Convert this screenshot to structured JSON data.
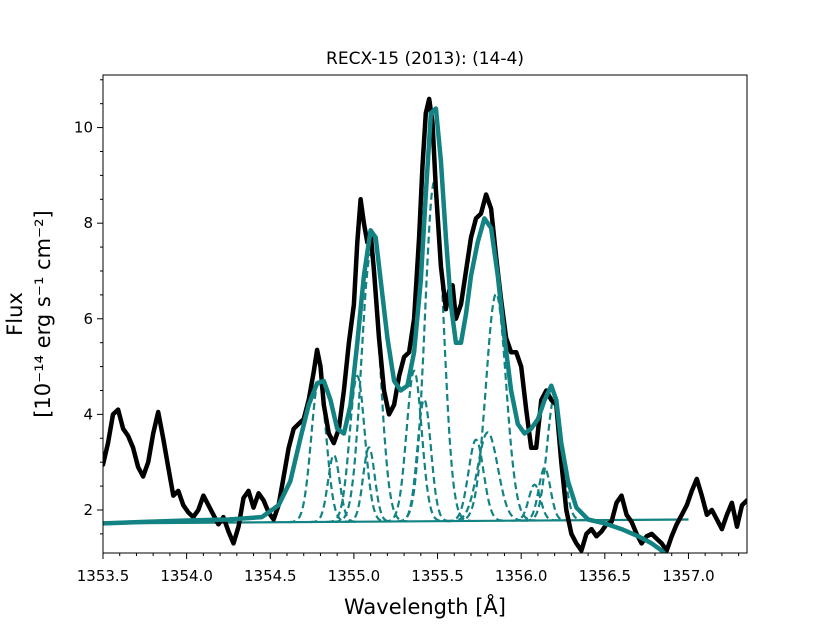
{
  "chart_data": {
    "type": "line",
    "title": "RECX-15 (2013): (14-4)",
    "xlabel": "Wavelength [Å]",
    "ylabel_line1": "Flux",
    "ylabel_line2": "[10⁻¹⁴ erg s⁻¹ cm⁻²]",
    "xlim": [
      1353.5,
      1357.35
    ],
    "ylim": [
      1.1,
      11.1
    ],
    "xticks": [
      1353.5,
      1354.0,
      1354.5,
      1355.0,
      1355.5,
      1356.0,
      1356.5,
      1357.0
    ],
    "xtick_labels": [
      "1353.5",
      "1354.0",
      "1354.5",
      "1355.0",
      "1355.5",
      "1356.0",
      "1356.5",
      "1357.0"
    ],
    "yticks": [
      2,
      4,
      6,
      8,
      10
    ],
    "ytick_labels": [
      "2",
      "4",
      "6",
      "8",
      "10"
    ],
    "grid": false,
    "colors": {
      "observed": "#000000",
      "model": "#138282",
      "components": "#138282"
    },
    "continuum": {
      "start": [
        1353.5,
        1.72
      ],
      "end": [
        1357.0,
        1.8
      ]
    },
    "observed": {
      "x": [
        1353.5,
        1353.53,
        1353.56,
        1353.59,
        1353.62,
        1353.65,
        1353.68,
        1353.71,
        1353.74,
        1353.77,
        1353.8,
        1353.83,
        1353.86,
        1353.89,
        1353.92,
        1353.95,
        1353.98,
        1354.01,
        1354.04,
        1354.07,
        1354.1,
        1354.13,
        1354.16,
        1354.19,
        1354.22,
        1354.25,
        1354.28,
        1354.31,
        1354.34,
        1354.37,
        1354.4,
        1354.43,
        1354.46,
        1354.49,
        1354.52,
        1354.55,
        1354.58,
        1354.61,
        1354.64,
        1354.67,
        1354.7,
        1354.73,
        1354.76,
        1354.78,
        1354.8,
        1354.82,
        1354.85,
        1354.88,
        1354.91,
        1354.94,
        1354.97,
        1355.0,
        1355.02,
        1355.04,
        1355.06,
        1355.08,
        1355.1,
        1355.12,
        1355.15,
        1355.18,
        1355.21,
        1355.24,
        1355.27,
        1355.3,
        1355.33,
        1355.36,
        1355.39,
        1355.41,
        1355.43,
        1355.45,
        1355.47,
        1355.49,
        1355.52,
        1355.55,
        1355.57,
        1355.59,
        1355.61,
        1355.64,
        1355.67,
        1355.7,
        1355.73,
        1355.76,
        1355.79,
        1355.82,
        1355.85,
        1355.88,
        1355.91,
        1355.94,
        1355.97,
        1356.0,
        1356.03,
        1356.06,
        1356.09,
        1356.12,
        1356.15,
        1356.18,
        1356.21,
        1356.24,
        1356.27,
        1356.3,
        1356.33,
        1356.36,
        1356.39,
        1356.42,
        1356.45,
        1356.48,
        1356.51,
        1356.54,
        1356.57,
        1356.6,
        1356.63,
        1356.66,
        1356.69,
        1356.72,
        1356.75,
        1356.78,
        1356.81,
        1356.84,
        1356.87,
        1356.9,
        1356.93,
        1356.96,
        1356.99,
        1357.02,
        1357.05,
        1357.08,
        1357.11,
        1357.14,
        1357.17,
        1357.2,
        1357.23,
        1357.26,
        1357.29,
        1357.32,
        1357.35
      ],
      "y": [
        2.95,
        3.4,
        4.0,
        4.1,
        3.7,
        3.55,
        3.3,
        2.9,
        2.7,
        3.0,
        3.6,
        4.05,
        3.5,
        2.9,
        2.3,
        2.4,
        2.1,
        1.95,
        1.85,
        2.0,
        2.3,
        2.1,
        1.9,
        1.7,
        1.85,
        1.55,
        1.3,
        1.65,
        2.25,
        2.4,
        2.05,
        2.35,
        2.2,
        1.95,
        1.8,
        2.1,
        2.7,
        3.3,
        3.7,
        3.8,
        3.9,
        4.3,
        4.9,
        5.35,
        5.0,
        4.2,
        3.6,
        3.4,
        3.7,
        4.5,
        5.5,
        6.3,
        7.6,
        8.5,
        8.0,
        7.6,
        7.8,
        7.0,
        5.6,
        4.5,
        4.0,
        4.2,
        4.8,
        5.2,
        5.3,
        6.0,
        7.7,
        9.2,
        10.3,
        10.6,
        10.1,
        8.7,
        7.1,
        6.2,
        6.6,
        6.7,
        6.0,
        6.3,
        7.0,
        7.7,
        8.1,
        8.2,
        8.6,
        8.3,
        7.3,
        6.4,
        5.6,
        5.3,
        5.3,
        5.0,
        4.1,
        3.3,
        3.3,
        4.3,
        4.5,
        4.3,
        4.2,
        3.0,
        2.0,
        1.5,
        1.3,
        1.15,
        1.5,
        1.6,
        1.45,
        1.55,
        1.7,
        1.75,
        2.15,
        2.3,
        1.9,
        1.75,
        1.5,
        1.3,
        1.45,
        1.5,
        1.4,
        1.3,
        1.15,
        1.45,
        1.7,
        1.9,
        2.1,
        2.4,
        2.65,
        2.3,
        1.9,
        2.0,
        1.8,
        1.6,
        1.9,
        2.15,
        1.65,
        2.1,
        2.2
      ]
    },
    "model": {
      "x": [
        1353.5,
        1353.75,
        1354.0,
        1354.25,
        1354.45,
        1354.55,
        1354.62,
        1354.68,
        1354.73,
        1354.78,
        1354.82,
        1354.86,
        1354.9,
        1354.94,
        1354.98,
        1355.02,
        1355.06,
        1355.1,
        1355.13,
        1355.16,
        1355.2,
        1355.24,
        1355.28,
        1355.32,
        1355.36,
        1355.4,
        1355.43,
        1355.46,
        1355.49,
        1355.52,
        1355.55,
        1355.58,
        1355.61,
        1355.64,
        1355.67,
        1355.7,
        1355.74,
        1355.78,
        1355.82,
        1355.86,
        1355.9,
        1355.94,
        1355.98,
        1356.02,
        1356.06,
        1356.1,
        1356.14,
        1356.18,
        1356.21,
        1356.24,
        1356.28,
        1356.33,
        1356.4,
        1356.5,
        1356.6,
        1356.7,
        1356.78,
        1356.84,
        1356.88
      ],
      "y": [
        1.72,
        1.75,
        1.78,
        1.8,
        1.85,
        2.1,
        2.6,
        3.5,
        4.2,
        4.65,
        4.7,
        4.3,
        3.7,
        3.6,
        4.2,
        5.5,
        6.9,
        7.85,
        7.7,
        6.8,
        5.6,
        4.7,
        4.5,
        4.6,
        5.3,
        6.8,
        8.6,
        10.3,
        10.4,
        9.3,
        7.7,
        6.3,
        5.5,
        5.5,
        6.1,
        6.9,
        7.6,
        8.1,
        7.9,
        6.9,
        5.6,
        4.5,
        3.8,
        3.6,
        3.7,
        3.9,
        4.3,
        4.6,
        4.3,
        3.4,
        2.6,
        2.05,
        1.8,
        1.72,
        1.6,
        1.45,
        1.3,
        1.15,
        1.0
      ]
    },
    "components": [
      {
        "center": 1354.79,
        "amp": 2.95,
        "sigma": 0.045
      },
      {
        "center": 1354.88,
        "amp": 1.4,
        "sigma": 0.035
      },
      {
        "center": 1355.02,
        "amp": 3.05,
        "sigma": 0.045
      },
      {
        "center": 1355.1,
        "amp": 5.6,
        "sigma": 0.055
      },
      {
        "center": 1355.09,
        "amp": 1.55,
        "sigma": 0.035
      },
      {
        "center": 1355.36,
        "amp": 3.15,
        "sigma": 0.045
      },
      {
        "center": 1355.42,
        "amp": 2.55,
        "sigma": 0.04
      },
      {
        "center": 1355.48,
        "amp": 7.1,
        "sigma": 0.055
      },
      {
        "center": 1355.73,
        "amp": 1.7,
        "sigma": 0.045
      },
      {
        "center": 1355.8,
        "amp": 1.85,
        "sigma": 0.06
      },
      {
        "center": 1355.85,
        "amp": 4.75,
        "sigma": 0.06
      },
      {
        "center": 1356.08,
        "amp": 0.75,
        "sigma": 0.035
      },
      {
        "center": 1356.14,
        "amp": 1.1,
        "sigma": 0.035
      },
      {
        "center": 1356.2,
        "amp": 2.6,
        "sigma": 0.045
      }
    ]
  }
}
